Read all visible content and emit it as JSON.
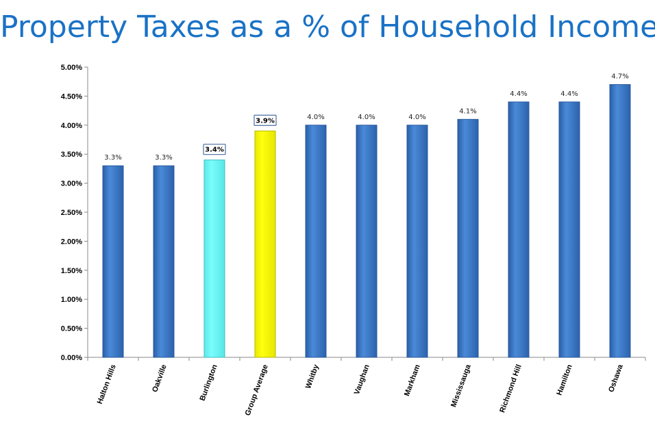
{
  "chart_data": {
    "type": "bar",
    "title": "Property Taxes as a % of Household Income",
    "xlabel": "",
    "ylabel": "",
    "categories": [
      "Halton Hills",
      "Oakville",
      "Burlington",
      "Group Average",
      "Whitby",
      "Vaughan",
      "Markham",
      "Mississauga",
      "Richmond Hill",
      "Hamilton",
      "Oshawa"
    ],
    "values": [
      3.3,
      3.3,
      3.4,
      3.9,
      4.0,
      4.0,
      4.0,
      4.1,
      4.4,
      4.4,
      4.7
    ],
    "data_labels": [
      "3.3%",
      "3.3%",
      "3.4%",
      "3.9%",
      "4.0%",
      "4.0%",
      "4.0%",
      "4.1%",
      "4.4%",
      "4.4%",
      "4.7%"
    ],
    "y_ticks": [
      "0.00%",
      "0.50%",
      "1.00%",
      "1.50%",
      "2.00%",
      "2.50%",
      "3.00%",
      "3.50%",
      "4.00%",
      "4.50%",
      "5.00%"
    ],
    "ylim": [
      0,
      5
    ],
    "grid": false,
    "legend": "none",
    "colors": {
      "default": "#3a78c8",
      "highlight_burlington": "#6efcfc",
      "highlight_group_average": "#fcfc00",
      "title": "#1a72c6"
    },
    "highlighted": {
      "Burlington": "highlight_burlington",
      "Group Average": "highlight_group_average"
    }
  }
}
